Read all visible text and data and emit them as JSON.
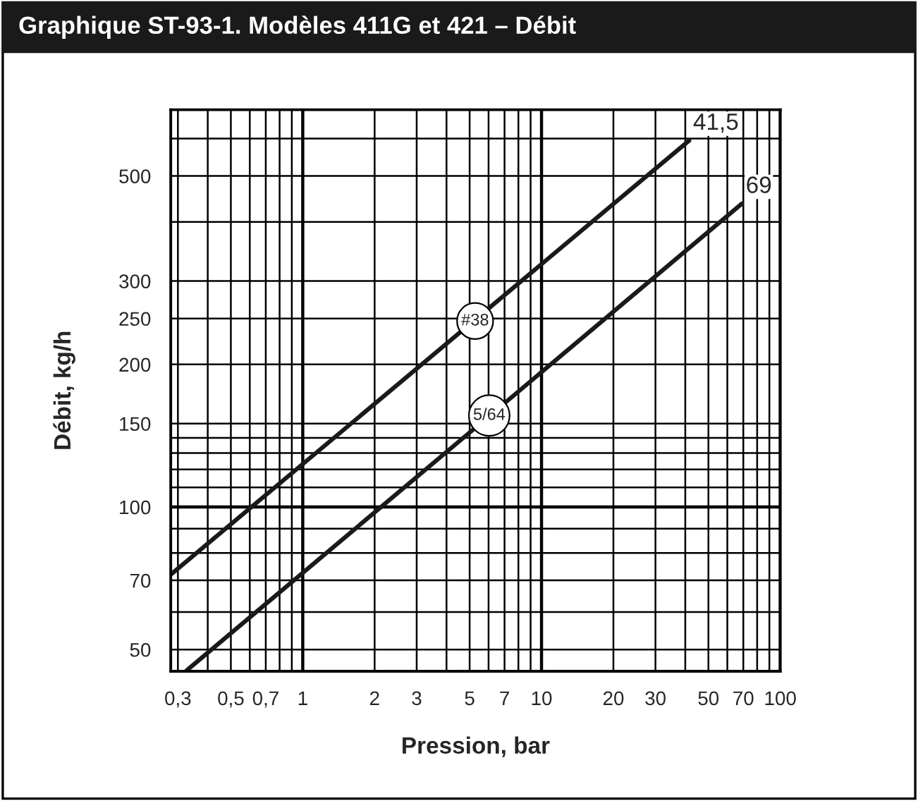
{
  "chart_data": {
    "type": "line",
    "title": "Graphique ST-93-1. Modèles 411G et 421 – Débit",
    "xlabel": "Pression, bar",
    "ylabel": "Débit, kg/h",
    "log": "xy",
    "grid": true,
    "legend": false,
    "marker": "none",
    "line_style": "solid",
    "series": [
      {
        "name": "41,5",
        "color": "#1a1a1a",
        "x": [
          0.28,
          41.5
        ],
        "values": [
          72,
          594
        ]
      },
      {
        "name": "69",
        "color": "#1a1a1a",
        "x": [
          0.327,
          69
        ],
        "values": [
          45.2,
          437
        ]
      }
    ],
    "annotations": [
      {
        "text": "#38",
        "x": 5.27,
        "y": 247
      },
      {
        "text": "5/64",
        "x": 6.04,
        "y": 156
      }
    ],
    "xlim": [
      0.28,
      100
    ],
    "ylim": [
      45,
      690
    ],
    "xticks": [
      {
        "value": 0.3,
        "label": "0,3"
      },
      {
        "value": 0.4,
        "label": null
      },
      {
        "value": 0.5,
        "label": "0,5"
      },
      {
        "value": 0.6,
        "label": null
      },
      {
        "value": 0.7,
        "label": "0,7"
      },
      {
        "value": 0.8,
        "label": null
      },
      {
        "value": 0.9,
        "label": null
      },
      1,
      2,
      3,
      {
        "value": 4,
        "label": null
      },
      5,
      {
        "value": 6,
        "label": null
      },
      7,
      {
        "value": 8,
        "label": null
      },
      {
        "value": 9,
        "label": null
      },
      10,
      20,
      30,
      {
        "value": 40,
        "label": null
      },
      50,
      {
        "value": 60,
        "label": null
      },
      70,
      {
        "value": 80,
        "label": null
      },
      {
        "value": 90,
        "label": null
      },
      100
    ],
    "yticks": [
      50,
      {
        "value": 60,
        "label": null
      },
      70,
      {
        "value": 80,
        "label": null
      },
      {
        "value": 90,
        "label": null
      },
      100,
      {
        "value": 110,
        "label": null
      },
      {
        "value": 120,
        "label": null
      },
      {
        "value": 130,
        "label": null
      },
      {
        "value": 140,
        "label": null
      },
      150,
      200,
      250,
      300,
      {
        "value": 400,
        "label": null
      },
      500,
      {
        "value": 600,
        "label": null
      }
    ]
  }
}
